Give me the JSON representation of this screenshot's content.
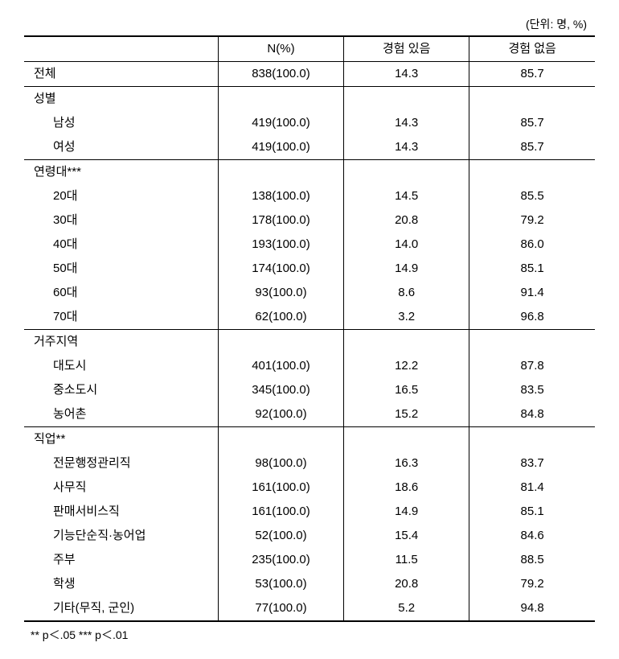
{
  "unit_label": "(단위: 명, %)",
  "columns": {
    "c0": "",
    "c1": "N(%)",
    "c2": "경험 있음",
    "c3": "경험 없음"
  },
  "rows": [
    {
      "type": "data",
      "sep": false,
      "label": "전체",
      "indent": 0,
      "n": "838(100.0)",
      "yes": "14.3",
      "no": "85.7"
    },
    {
      "type": "header",
      "sep": true,
      "label": "성별"
    },
    {
      "type": "data",
      "label": "남성",
      "indent": 1,
      "n": "419(100.0)",
      "yes": "14.3",
      "no": "85.7"
    },
    {
      "type": "data",
      "label": "여성",
      "indent": 1,
      "n": "419(100.0)",
      "yes": "14.3",
      "no": "85.7"
    },
    {
      "type": "header",
      "sep": true,
      "label": "연령대***"
    },
    {
      "type": "data",
      "label": "20대",
      "indent": 1,
      "n": "138(100.0)",
      "yes": "14.5",
      "no": "85.5"
    },
    {
      "type": "data",
      "label": "30대",
      "indent": 1,
      "n": "178(100.0)",
      "yes": "20.8",
      "no": "79.2"
    },
    {
      "type": "data",
      "label": "40대",
      "indent": 1,
      "n": "193(100.0)",
      "yes": "14.0",
      "no": "86.0"
    },
    {
      "type": "data",
      "label": "50대",
      "indent": 1,
      "n": "174(100.0)",
      "yes": "14.9",
      "no": "85.1"
    },
    {
      "type": "data",
      "label": "60대",
      "indent": 1,
      "n": "93(100.0)",
      "yes": "8.6",
      "no": "91.4"
    },
    {
      "type": "data",
      "label": "70대",
      "indent": 1,
      "n": "62(100.0)",
      "yes": "3.2",
      "no": "96.8"
    },
    {
      "type": "header",
      "sep": true,
      "label": "거주지역"
    },
    {
      "type": "data",
      "label": "대도시",
      "indent": 1,
      "n": "401(100.0)",
      "yes": "12.2",
      "no": "87.8"
    },
    {
      "type": "data",
      "label": "중소도시",
      "indent": 1,
      "n": "345(100.0)",
      "yes": "16.5",
      "no": "83.5"
    },
    {
      "type": "data",
      "label": "농어촌",
      "indent": 1,
      "n": "92(100.0)",
      "yes": "15.2",
      "no": "84.8"
    },
    {
      "type": "header",
      "sep": true,
      "label": "직업**"
    },
    {
      "type": "data",
      "label": "전문행정관리직",
      "indent": 1,
      "n": "98(100.0)",
      "yes": "16.3",
      "no": "83.7"
    },
    {
      "type": "data",
      "label": "사무직",
      "indent": 1,
      "n": "161(100.0)",
      "yes": "18.6",
      "no": "81.4"
    },
    {
      "type": "data",
      "label": "판매서비스직",
      "indent": 1,
      "n": "161(100.0)",
      "yes": "14.9",
      "no": "85.1"
    },
    {
      "type": "data",
      "label": "기능단순직·농어업",
      "indent": 1,
      "n": "52(100.0)",
      "yes": "15.4",
      "no": "84.6"
    },
    {
      "type": "data",
      "label": "주부",
      "indent": 1,
      "n": "235(100.0)",
      "yes": "11.5",
      "no": "88.5"
    },
    {
      "type": "data",
      "label": "학생",
      "indent": 1,
      "n": "53(100.0)",
      "yes": "20.8",
      "no": "79.2"
    },
    {
      "type": "data",
      "label": "기타(무직, 군인)",
      "indent": 1,
      "n": "77(100.0)",
      "yes": "5.2",
      "no": "94.8",
      "bottom": true
    }
  ],
  "footnote": "** p＜.05   *** p＜.01"
}
